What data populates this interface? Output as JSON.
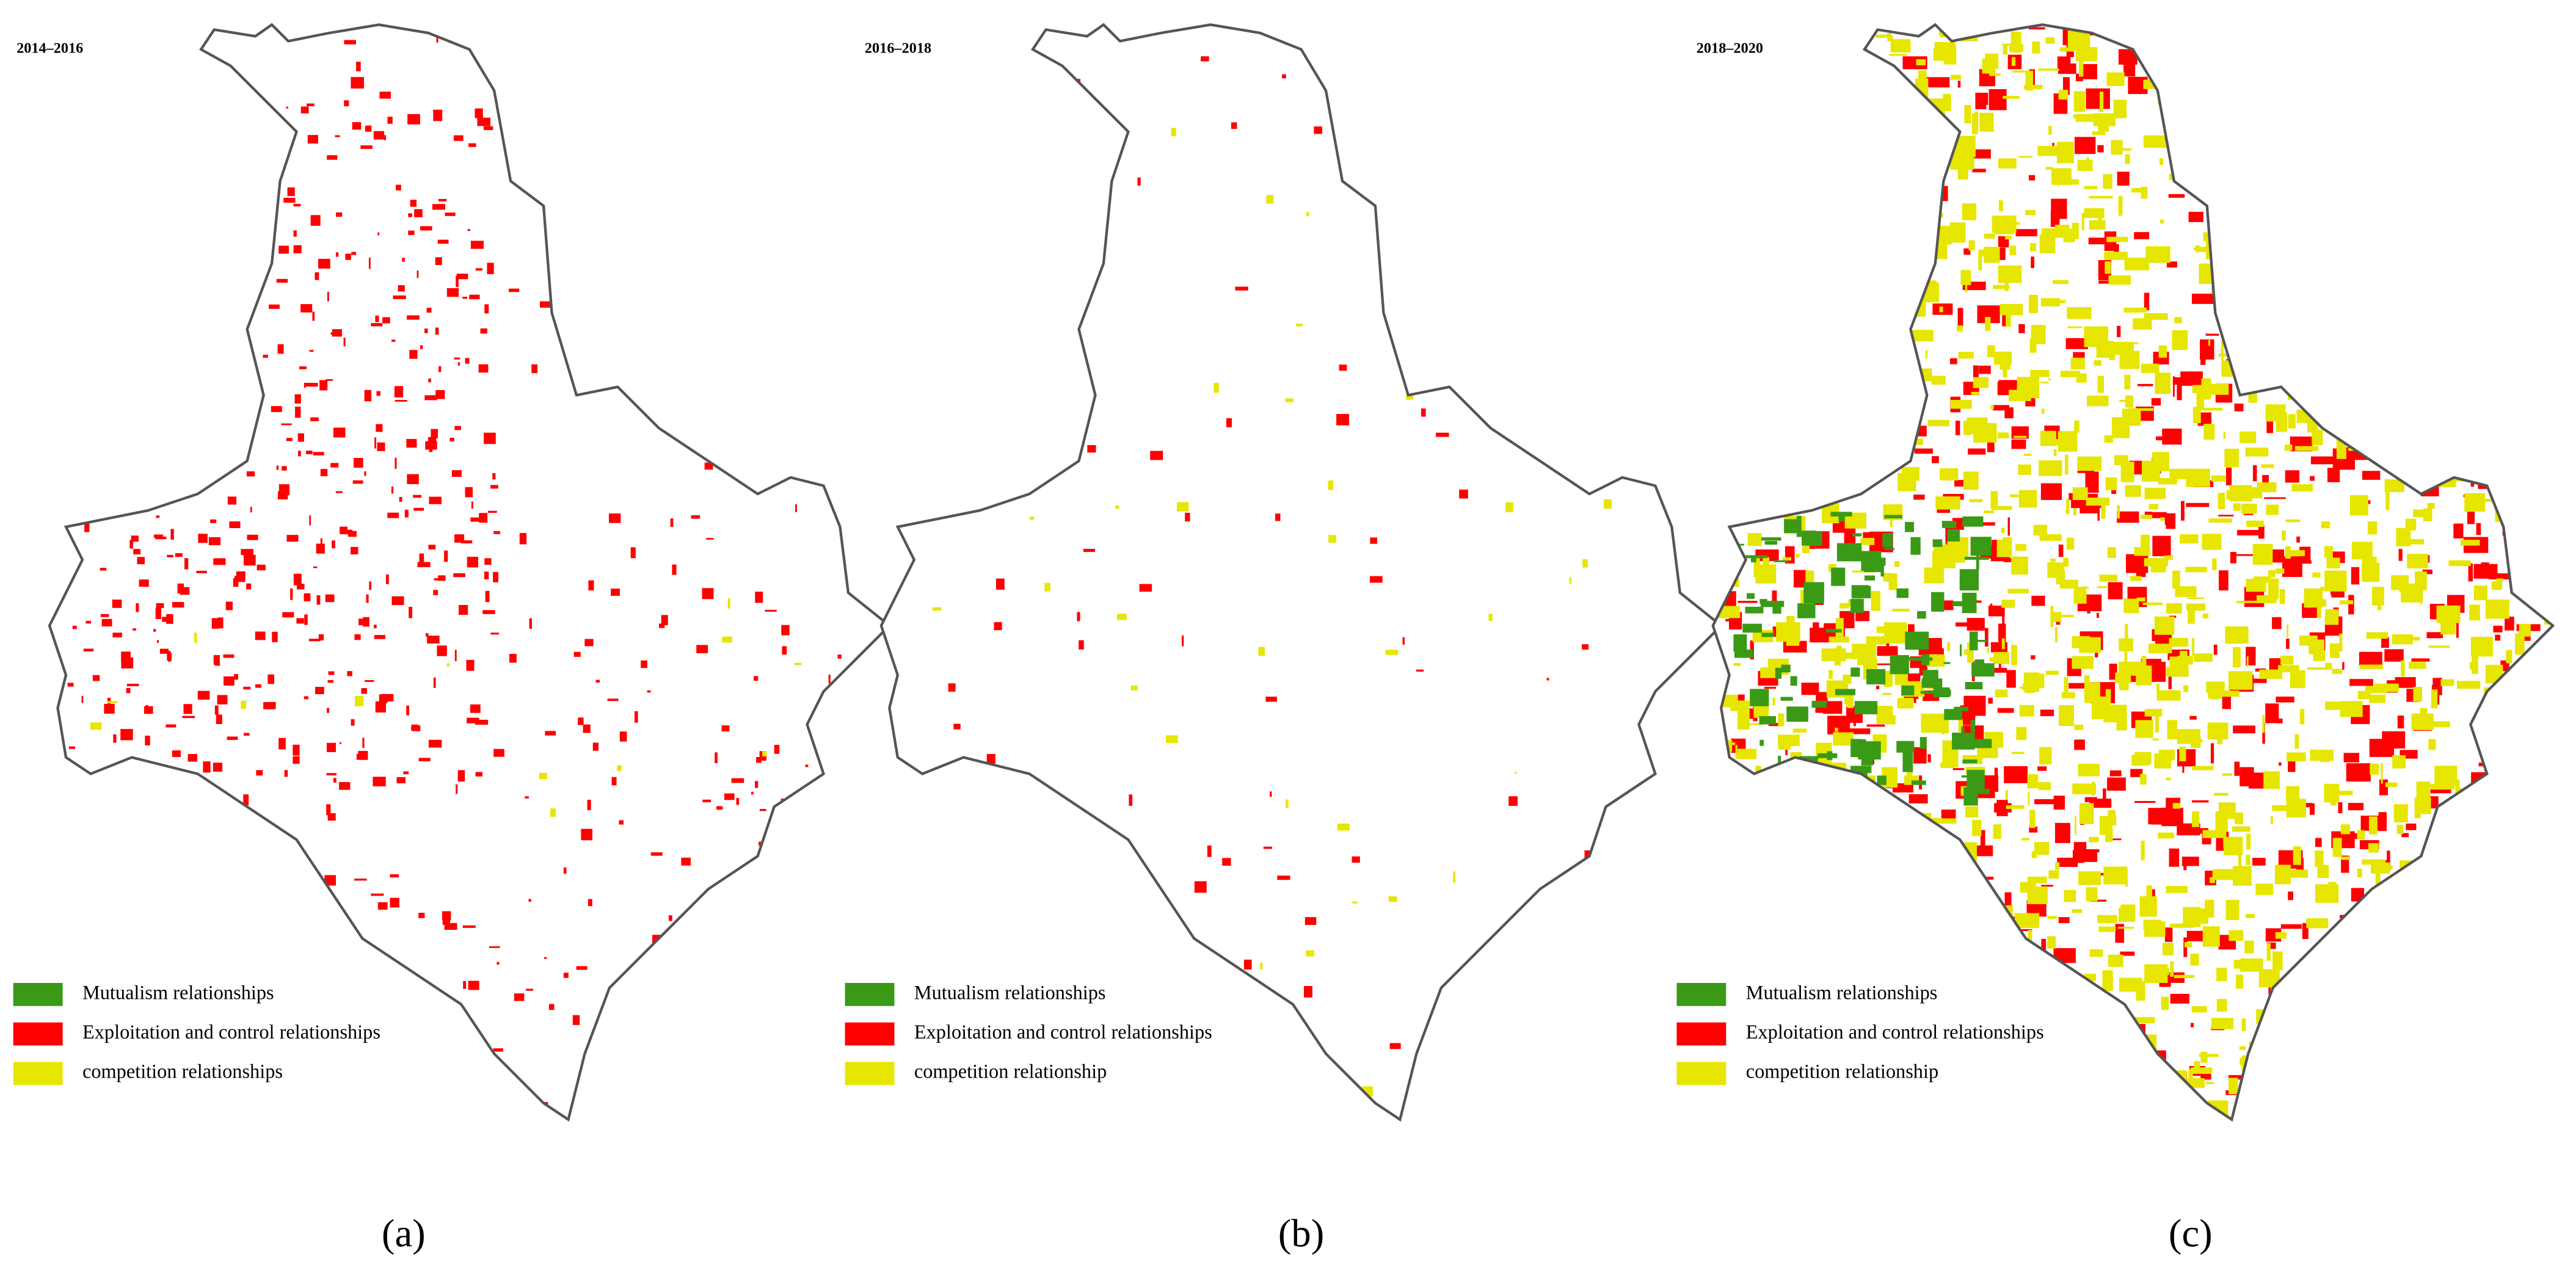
{
  "panels": [
    {
      "title": "2014–2016",
      "caption": "(a)",
      "legend": [
        {
          "label": "Mutualism relationships",
          "color": "#3a9a16"
        },
        {
          "label": "Exploitation and control relationships",
          "color": "#ff0000"
        },
        {
          "label": "competition relationships",
          "color": "#e6e600"
        }
      ]
    },
    {
      "title": "2016–2018",
      "caption": "(b)",
      "legend": [
        {
          "label": "Mutualism relationships",
          "color": "#3a9a16"
        },
        {
          "label": "Exploitation and control relationships",
          "color": "#ff0000"
        },
        {
          "label": "competition relationship",
          "color": "#e6e600"
        }
      ]
    },
    {
      "title": "2018–2020",
      "caption": "(c)",
      "legend": [
        {
          "label": "Mutualism relationships",
          "color": "#3a9a16"
        },
        {
          "label": "Exploitation and control relationships",
          "color": "#ff0000"
        },
        {
          "label": "competition relationship",
          "color": "#e6e600"
        }
      ]
    }
  ]
}
